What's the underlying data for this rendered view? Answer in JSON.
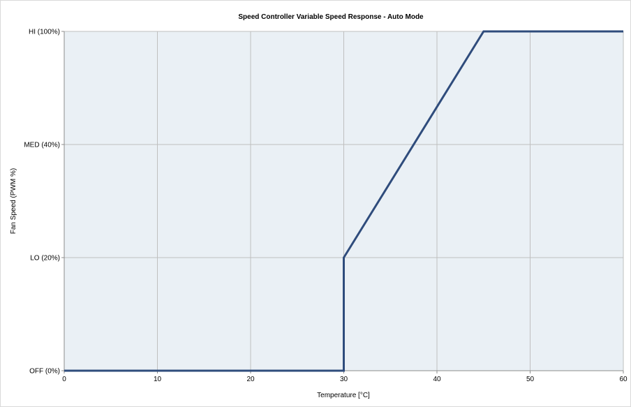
{
  "chart_data": {
    "type": "line",
    "title": "Speed Controller Variable Speed Response - Auto Mode",
    "xlabel": "Temperature [°C]",
    "ylabel": "Fan Speed (PWM %)",
    "xlim": [
      0,
      60
    ],
    "ylim": [
      0,
      150
    ],
    "x_ticks": [
      {
        "value": 0,
        "label": "0"
      },
      {
        "value": 10,
        "label": "10"
      },
      {
        "value": 20,
        "label": "20"
      },
      {
        "value": 30,
        "label": "30"
      },
      {
        "value": 40,
        "label": "40"
      },
      {
        "value": 50,
        "label": "50"
      },
      {
        "value": 60,
        "label": "60"
      }
    ],
    "y_ticks": [
      {
        "value": 0,
        "label": "OFF (0%)"
      },
      {
        "value": 50,
        "label": "LO (20%)"
      },
      {
        "value": 100,
        "label": "MED (40%)"
      },
      {
        "value": 150,
        "label": "HI (100%)"
      }
    ],
    "grid": true,
    "series": [
      {
        "x": [
          0,
          30,
          30,
          45,
          60
        ],
        "y": [
          0,
          0,
          50,
          150,
          150
        ]
      }
    ],
    "colors": {
      "line": "#2F4C7C",
      "plot_background": "#EAF0F5",
      "grid": "#BFBFBF",
      "axis": "#8C8C8C"
    }
  }
}
